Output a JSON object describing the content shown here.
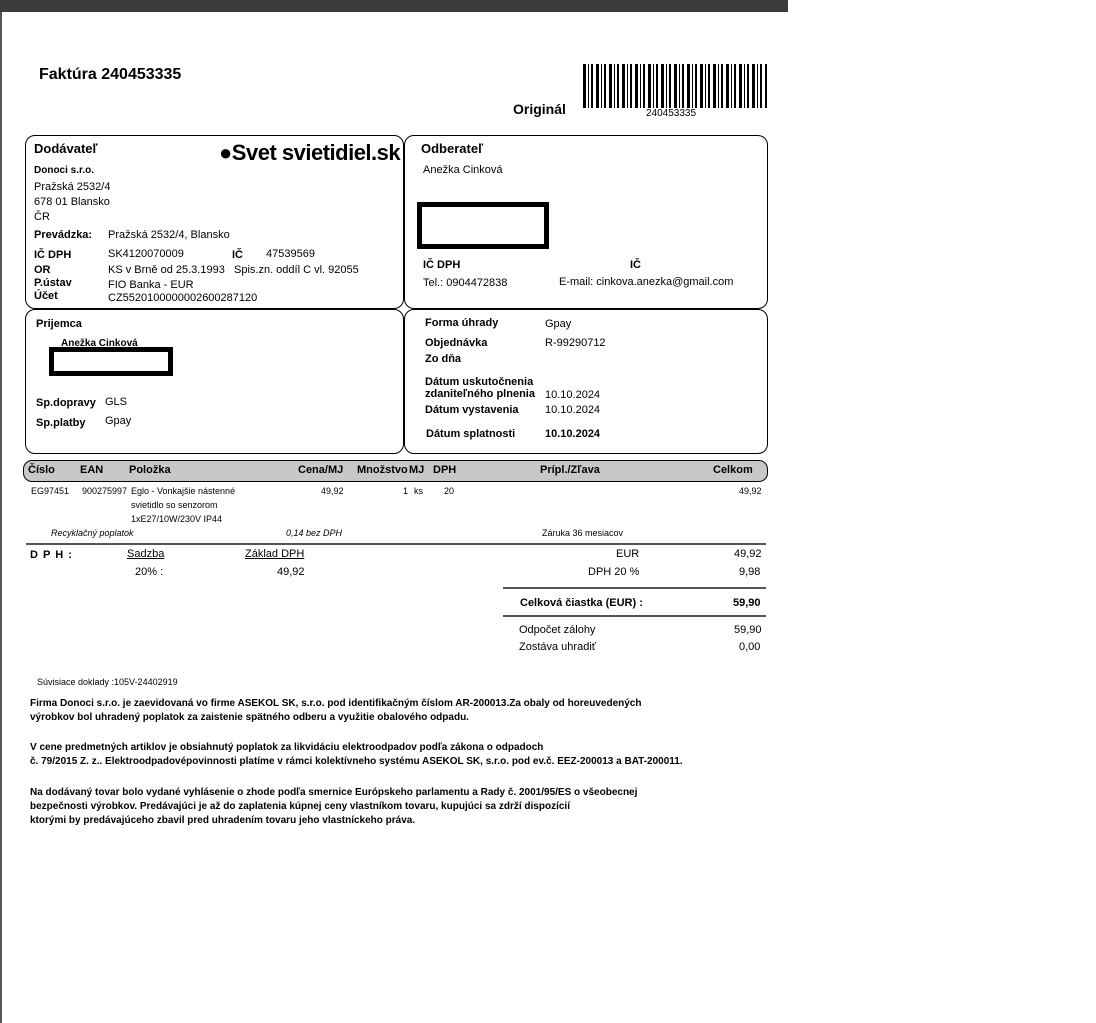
{
  "title": "Faktúra 240453335",
  "original": "Originál",
  "barcode": "240453335",
  "supplier": {
    "heading": "Dodávateľ",
    "logo": "Svet svietidiel.sk",
    "name": "Donoci s.r.o.",
    "street": "Pražská 2532/4",
    "city": "678 01  Blansko",
    "country": "ČR",
    "prevadzka_label": "Prevádzka:",
    "prevadzka": "Pražská 2532/4, Blansko",
    "icdph_label": "IČ DPH",
    "icdph": "SK4120070009",
    "ic_label": "IČ",
    "ic": "47539569",
    "or_label": "OR",
    "or": "KS v Brně od 25.3.1993",
    "spis": "Spis.zn. oddíl C vl. 92055",
    "ustav_label": "P.ústav",
    "ustav": "FIO Banka - EUR",
    "ucet_label": "Účet",
    "ucet": "CZ5520100000002600287120"
  },
  "customer": {
    "heading": "Odberateľ",
    "name": "Anežka Cinková",
    "icdph_label": "IČ DPH",
    "ic_label": "IČ",
    "tel": "Tel.: 0904472838",
    "email": "E-mail: cinkova.anezka@gmail.com"
  },
  "recipient": {
    "heading": "Prijemca",
    "name": "Anežka Cinková",
    "doprava_label": "Sp.dopravy",
    "doprava": "GLS",
    "platba_label": "Sp.platby",
    "platba": "Gpay"
  },
  "payment": {
    "forma_label": "Forma úhrady",
    "forma": "Gpay",
    "obj_label": "Objednávka",
    "obj": "R-99290712",
    "zodna_label": "Zo dňa",
    "duzp_label1": "Dátum uskutočnenia",
    "duzp_label2": "zdaniteľného plnenia",
    "duzp": "10.10.2024",
    "vyst_label": "Dátum vystavenia",
    "vyst": "10.10.2024",
    "splat_label": "Dátum splatnosti",
    "splat": "10.10.2024"
  },
  "table": {
    "headers": [
      "Číslo",
      "EAN",
      "Položka",
      "Cena/MJ",
      "Množstvo",
      "MJ",
      "DPH",
      "Prípl./Zľava",
      "Celkom"
    ],
    "row": {
      "cislo": "EG97451",
      "ean": "900275997",
      "item1": "Eglo - Vonkajšie nástenné",
      "item2": "svietidlo so senzorom",
      "item3": "1xE27/10W/230V IP44",
      "cena": "49,92",
      "mnozstvo": "1",
      "mj": "ks",
      "dph": "20",
      "celkom": "49,92"
    },
    "recykl_label": "Recyklačný poplatok",
    "recykl": "0,14 bez DPH",
    "zaruka": "Záruka  36 mesiacov"
  },
  "vat": {
    "label": "D P H :",
    "sadzba_label": "Sadzba",
    "zaklad_label": "Základ DPH",
    "sadzba": "20% :",
    "zaklad": "49,92",
    "eur_label": "EUR",
    "eur": "49,92",
    "dph_label": "DPH 20 %",
    "dph": "9,98",
    "total_label": "Celková čiastka (EUR)  :",
    "total": "59,90",
    "zaloha_label": "Odpočet zálohy",
    "zaloha": "59,90",
    "zostava_label": "Zostáva uhradiť",
    "zostava": "0,00"
  },
  "related": "Súvisiace doklady :105V-24402919",
  "notes": [
    "Firma Donoci s.r.o. je zaevidovaná vo firme ASEKOL SK, s.r.o. pod identifikačným číslom AR-200013.Za obaly od horeuvedených",
    "výrobkov bol uhradený poplatok za zaistenie spätného odberu a využitie obalového odpadu.",
    "V cene predmetných artiklov je obsiahnutý poplatok za likvidáciu elektroodpadov podľa zákona o odpadoch",
    "č. 79/2015 Z. z.. Elektroodpadovépovinnosti platíme v rámci kolektívneho systému ASEKOL SK, s.r.o. pod ev.č. EEZ-200013 a BAT-200011.",
    "Na dodávaný tovar bolo vydané vyhlásenie o zhode podľa smernice Európskeho parlamentu a Rady č. 2001/95/ES o všeobecnej",
    "bezpečnosti výrobkov. Predávajúci je až do zaplatenia kúpnej ceny vlastníkom tovaru, kupujúci sa zdrží dispozícií",
    "ktorými by predávajúceho zbavil pred uhradením tovaru jeho vlastníckeho práva."
  ]
}
